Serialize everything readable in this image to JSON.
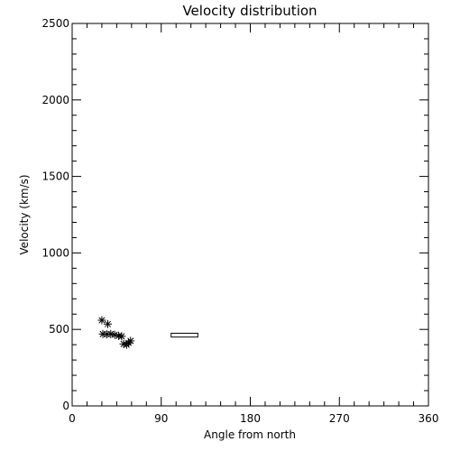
{
  "chart_data": {
    "type": "scatter",
    "title": "Velocity distribution",
    "xlabel": "Angle from north",
    "ylabel": "Velocity (km/s)",
    "xlim": [
      0,
      360
    ],
    "ylim": [
      0,
      2500
    ],
    "xticks": [
      0,
      90,
      180,
      270,
      360
    ],
    "yticks": [
      0,
      500,
      1000,
      1500,
      2000,
      2500
    ],
    "xtick_labels": [
      "0",
      "90",
      "180",
      "270",
      "360"
    ],
    "ytick_labels": [
      "0",
      "500",
      "1000",
      "1500",
      "2000",
      "2500"
    ],
    "x_minor_step": 15,
    "y_minor_step": 100,
    "grid": false,
    "marker": "asterisk",
    "points": [
      {
        "x": 30,
        "y": 560
      },
      {
        "x": 36,
        "y": 535
      },
      {
        "x": 31,
        "y": 470
      },
      {
        "x": 35,
        "y": 468
      },
      {
        "x": 39,
        "y": 470
      },
      {
        "x": 43,
        "y": 465
      },
      {
        "x": 47,
        "y": 458
      },
      {
        "x": 50,
        "y": 455
      },
      {
        "x": 52,
        "y": 405
      },
      {
        "x": 55,
        "y": 400
      },
      {
        "x": 57,
        "y": 412
      },
      {
        "x": 59,
        "y": 425
      }
    ],
    "range_box": {
      "x": [
        100,
        127
      ],
      "y": [
        450,
        475
      ]
    }
  }
}
